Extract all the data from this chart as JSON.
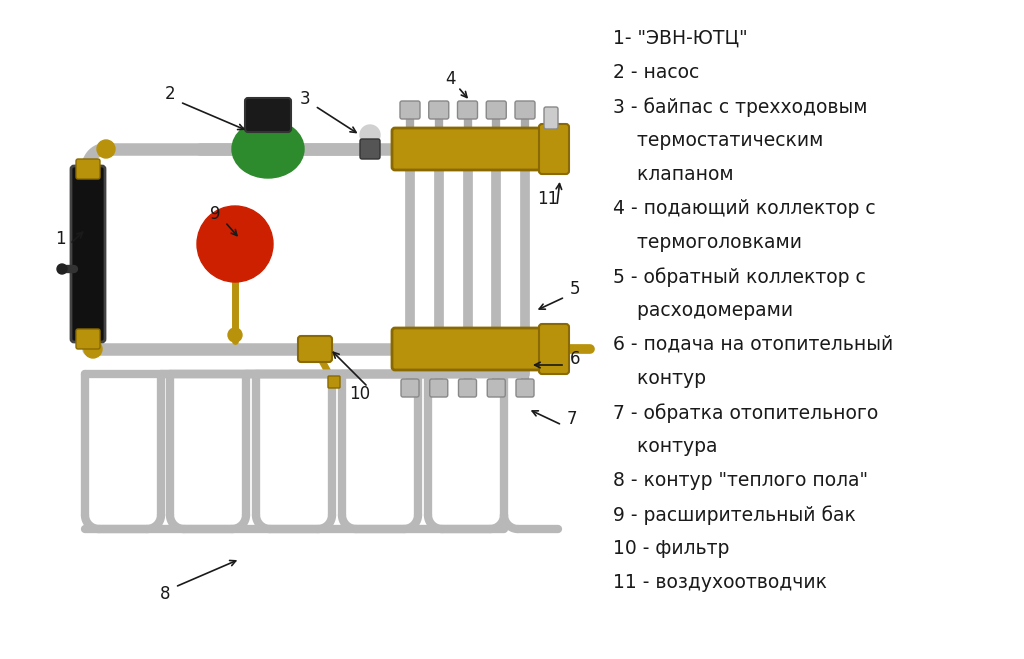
{
  "background_color": "#ffffff",
  "text_color": "#1a1a1a",
  "pipe_color": "#b8b8b8",
  "pipe_shadow": "#888888",
  "brass_color": "#b8920a",
  "brass_dark": "#8a6a00",
  "green_color": "#2d8a2d",
  "red_color": "#cc2000",
  "dark_color": "#1a1a1a",
  "legend_fontsize": 13.5,
  "label_fontsize": 12,
  "legend_lines": [
    "1- \"ЭВН-ЮТЦ\"",
    "2 - насос",
    "3 - байпас с трехходовым",
    "    термостатическим",
    "    клапаном",
    "4 - подающий коллектор с",
    "    термоголовками",
    "5 - обратный коллектор с",
    "    расходомерами",
    "6 - подача на отопительный",
    "    контур",
    "7 - обратка отопительного",
    "    контура",
    "8 - контур \"теплого пола\"",
    "9 - расширительный бак",
    "10 - фильтр",
    "11 - воздухоотводчик"
  ]
}
